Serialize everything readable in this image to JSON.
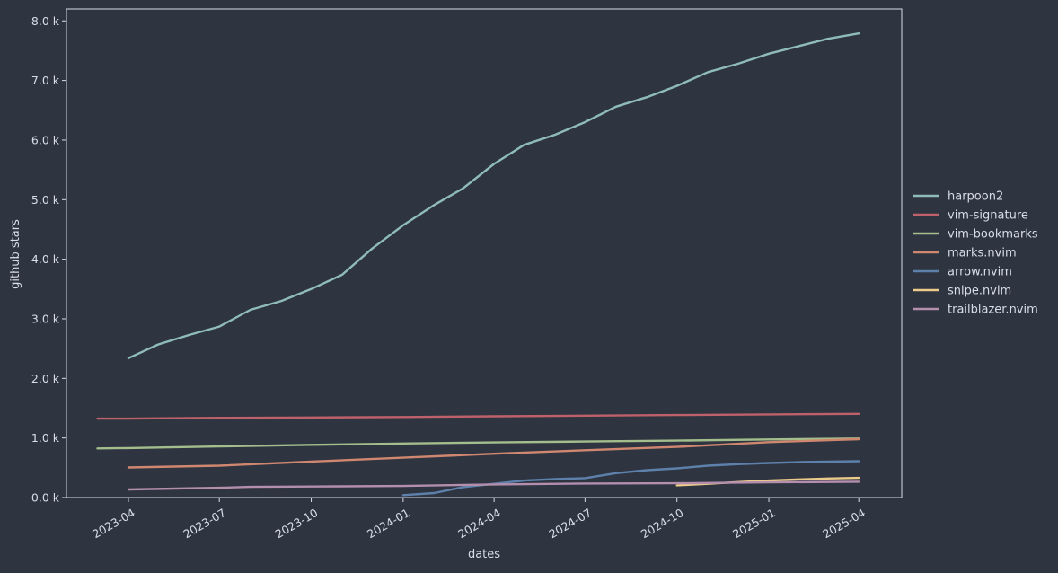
{
  "chart_data": {
    "type": "line",
    "title": "",
    "xlabel": "dates",
    "ylabel": "github stars",
    "x_ticks": [
      {
        "date": "2023-04-01",
        "label": "2023-04"
      },
      {
        "date": "2023-07-01",
        "label": "2023-07"
      },
      {
        "date": "2023-10-01",
        "label": "2023-10"
      },
      {
        "date": "2024-01-01",
        "label": "2024-01"
      },
      {
        "date": "2024-04-01",
        "label": "2024-04"
      },
      {
        "date": "2024-07-01",
        "label": "2024-07"
      },
      {
        "date": "2024-10-01",
        "label": "2024-10"
      },
      {
        "date": "2025-01-01",
        "label": "2025-01"
      },
      {
        "date": "2025-04-01",
        "label": "2025-04"
      }
    ],
    "y_ticks": [
      {
        "value": 0,
        "label": "0.0 k"
      },
      {
        "value": 1000,
        "label": "1.0 k"
      },
      {
        "value": 2000,
        "label": "2.0 k"
      },
      {
        "value": 3000,
        "label": "3.0 k"
      },
      {
        "value": 4000,
        "label": "4.0 k"
      },
      {
        "value": 5000,
        "label": "5.0 k"
      },
      {
        "value": 6000,
        "label": "6.0 k"
      },
      {
        "value": 7000,
        "label": "7.0 k"
      },
      {
        "value": 8000,
        "label": "8.0 k"
      }
    ],
    "xlim": [
      "2023-01-29",
      "2025-05-14"
    ],
    "ylim": [
      0,
      8200
    ],
    "grid": false,
    "legend_position": "outside-right",
    "series": [
      {
        "name": "harpoon2",
        "color": "#8fbcbb",
        "points": [
          [
            "2023-04-01",
            2340
          ],
          [
            "2023-05-01",
            2570
          ],
          [
            "2023-06-01",
            2730
          ],
          [
            "2023-07-01",
            2870
          ],
          [
            "2023-08-01",
            3150
          ],
          [
            "2023-09-01",
            3300
          ],
          [
            "2023-10-01",
            3500
          ],
          [
            "2023-11-01",
            3740
          ],
          [
            "2023-12-01",
            4180
          ],
          [
            "2024-01-01",
            4570
          ],
          [
            "2024-02-01",
            4910
          ],
          [
            "2024-03-01",
            5190
          ],
          [
            "2024-04-01",
            5600
          ],
          [
            "2024-05-01",
            5920
          ],
          [
            "2024-06-01",
            6090
          ],
          [
            "2024-07-01",
            6300
          ],
          [
            "2024-08-01",
            6560
          ],
          [
            "2024-09-01",
            6720
          ],
          [
            "2024-10-01",
            6910
          ],
          [
            "2024-11-01",
            7140
          ],
          [
            "2024-12-01",
            7280
          ],
          [
            "2025-01-01",
            7450
          ],
          [
            "2025-02-01",
            7580
          ],
          [
            "2025-03-01",
            7700
          ],
          [
            "2025-04-01",
            7790
          ]
        ]
      },
      {
        "name": "vim-signature",
        "color": "#bf616a",
        "points": [
          [
            "2023-03-01",
            1325
          ],
          [
            "2023-04-01",
            1325
          ],
          [
            "2023-07-01",
            1338
          ],
          [
            "2023-10-01",
            1345
          ],
          [
            "2024-01-01",
            1352
          ],
          [
            "2024-04-01",
            1364
          ],
          [
            "2024-07-01",
            1374
          ],
          [
            "2024-10-01",
            1386
          ],
          [
            "2025-01-01",
            1396
          ],
          [
            "2025-04-01",
            1405
          ]
        ]
      },
      {
        "name": "vim-bookmarks",
        "color": "#a3be8c",
        "points": [
          [
            "2023-03-01",
            825
          ],
          [
            "2023-04-01",
            830
          ],
          [
            "2023-07-01",
            858
          ],
          [
            "2023-10-01",
            885
          ],
          [
            "2024-01-01",
            908
          ],
          [
            "2024-04-01",
            925
          ],
          [
            "2024-07-01",
            940
          ],
          [
            "2024-10-01",
            955
          ],
          [
            "2025-01-01",
            975
          ],
          [
            "2025-04-01",
            990
          ]
        ]
      },
      {
        "name": "marks.nvim",
        "color": "#d08770",
        "points": [
          [
            "2023-04-01",
            505
          ],
          [
            "2023-07-01",
            535
          ],
          [
            "2023-10-01",
            605
          ],
          [
            "2024-01-01",
            670
          ],
          [
            "2024-04-01",
            735
          ],
          [
            "2024-07-01",
            795
          ],
          [
            "2024-10-01",
            850
          ],
          [
            "2025-01-01",
            930
          ],
          [
            "2025-04-01",
            980
          ]
        ]
      },
      {
        "name": "arrow.nvim",
        "color": "#5e81ac",
        "points": [
          [
            "2024-01-01",
            40
          ],
          [
            "2024-02-01",
            75
          ],
          [
            "2024-03-01",
            175
          ],
          [
            "2024-04-01",
            230
          ],
          [
            "2024-05-01",
            285
          ],
          [
            "2024-06-01",
            310
          ],
          [
            "2024-07-01",
            325
          ],
          [
            "2024-08-01",
            410
          ],
          [
            "2024-09-01",
            460
          ],
          [
            "2024-10-01",
            490
          ],
          [
            "2024-11-01",
            535
          ],
          [
            "2024-12-01",
            560
          ],
          [
            "2025-01-01",
            580
          ],
          [
            "2025-02-01",
            595
          ],
          [
            "2025-03-01",
            605
          ],
          [
            "2025-04-01",
            610
          ]
        ]
      },
      {
        "name": "snipe.nvim",
        "color": "#ebcb8b",
        "points": [
          [
            "2024-10-01",
            205
          ],
          [
            "2024-11-01",
            230
          ],
          [
            "2024-12-01",
            260
          ],
          [
            "2025-01-01",
            285
          ],
          [
            "2025-02-01",
            305
          ],
          [
            "2025-03-01",
            320
          ],
          [
            "2025-04-01",
            330
          ]
        ]
      },
      {
        "name": "trailblazer.nvim",
        "color": "#b48ead",
        "points": [
          [
            "2023-04-01",
            135
          ],
          [
            "2023-07-01",
            165
          ],
          [
            "2023-08-01",
            180
          ],
          [
            "2023-10-01",
            185
          ],
          [
            "2024-01-01",
            195
          ],
          [
            "2024-04-01",
            220
          ],
          [
            "2024-07-01",
            235
          ],
          [
            "2024-10-01",
            240
          ],
          [
            "2025-01-01",
            255
          ],
          [
            "2025-04-01",
            265
          ]
        ]
      }
    ]
  }
}
